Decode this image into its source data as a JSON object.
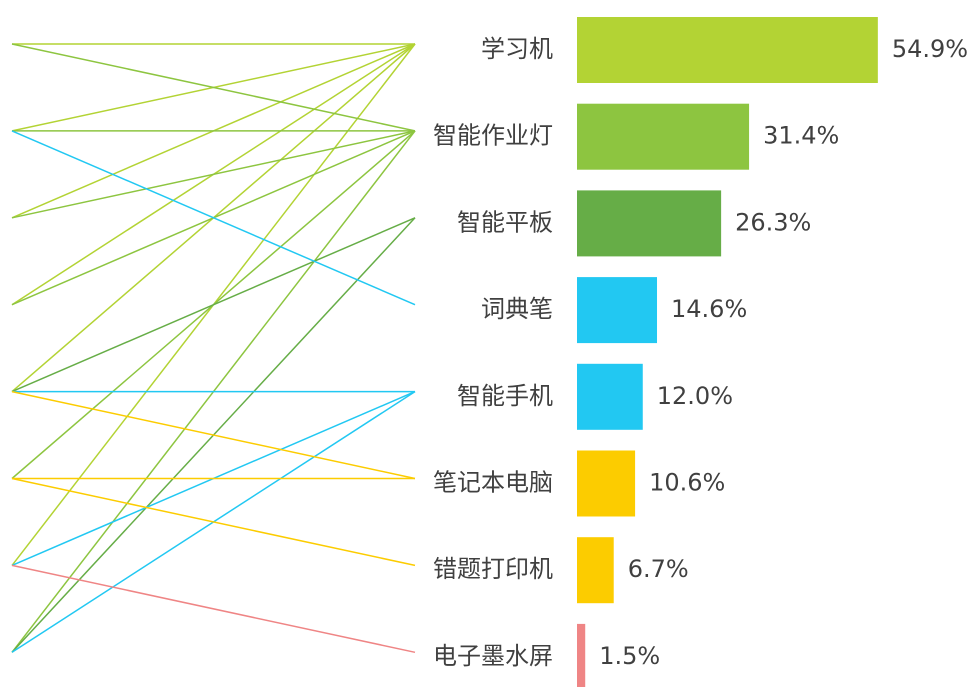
{
  "chart_data": {
    "type": "bar",
    "categories": [
      "学习机",
      "智能作业灯",
      "智能平板",
      "词典笔",
      "智能手机",
      "笔记本电脑",
      "错题打印机",
      "电子墨水屏"
    ],
    "values": [
      54.9,
      31.4,
      26.3,
      14.6,
      12.0,
      10.6,
      6.7,
      1.5
    ],
    "value_labels": [
      "54.9%",
      "31.4%",
      "26.3%",
      "14.6%",
      "12.0%",
      "10.6%",
      "6.7%",
      "1.5%"
    ],
    "colors": [
      "#b3d334",
      "#8dc540",
      "#66ad47",
      "#22c8f2",
      "#22c8f2",
      "#fccc00",
      "#fccc00",
      "#ef8585"
    ]
  }
}
